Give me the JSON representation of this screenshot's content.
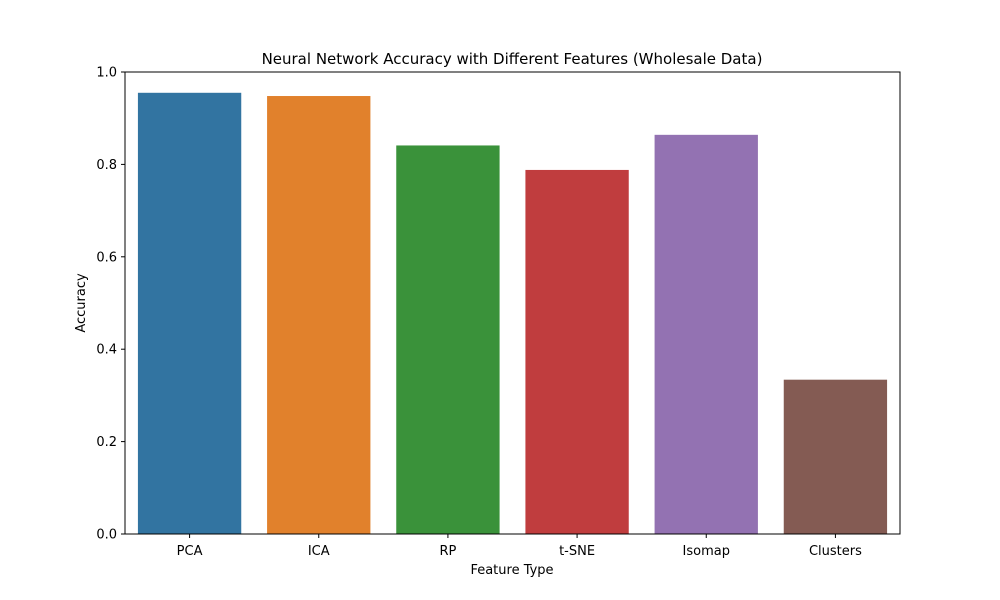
{
  "chart_data": {
    "type": "bar",
    "title": "Neural Network Accuracy with Different Features (Wholesale Data)",
    "xlabel": "Feature Type",
    "ylabel": "Accuracy",
    "categories": [
      "PCA",
      "ICA",
      "RP",
      "t-SNE",
      "Isomap",
      "Clusters"
    ],
    "values": [
      0.955,
      0.948,
      0.841,
      0.788,
      0.864,
      0.334
    ],
    "colors": [
      "#3274a1",
      "#e1812c",
      "#3a923a",
      "#c03d3e",
      "#9372b2",
      "#845b53"
    ],
    "ylim": [
      0,
      1.0
    ],
    "yticks": [
      0.0,
      0.2,
      0.4,
      0.6,
      0.8,
      1.0
    ],
    "ytick_labels": [
      "0.0",
      "0.2",
      "0.4",
      "0.6",
      "0.8",
      "1.0"
    ],
    "grid": false,
    "legend": "none"
  }
}
